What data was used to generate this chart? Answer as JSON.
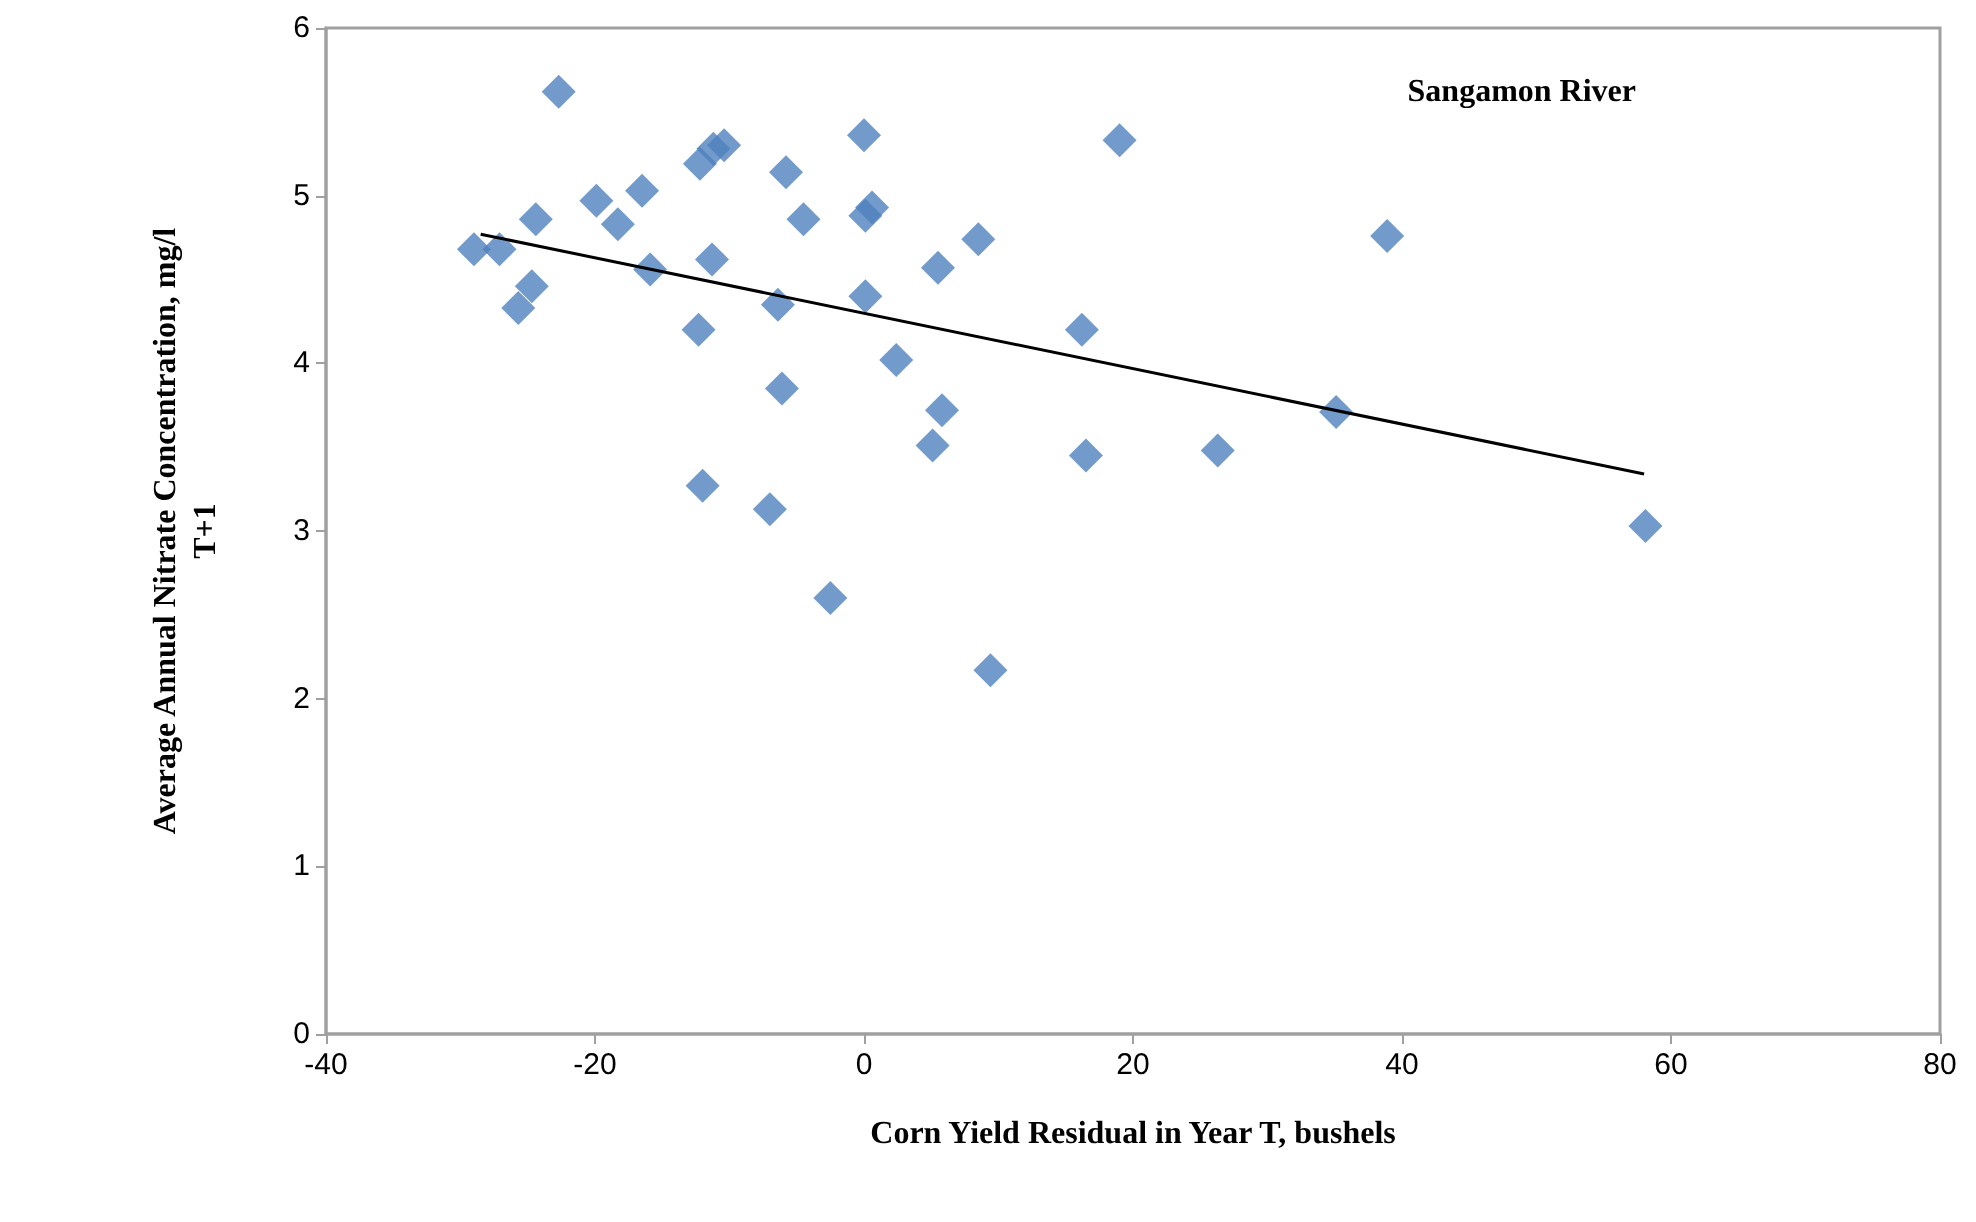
{
  "chart_data": {
    "type": "scatter",
    "xlabel": "Corn Yield Residual in Year T, bushels",
    "ylabel": "Average Annual Nitrate Concentration, mg/l\nT+1",
    "annotations": [
      "Sangamon River"
    ],
    "xlim": [
      -40,
      80
    ],
    "xticks": [
      -40,
      -20,
      0,
      20,
      40,
      60,
      80
    ],
    "ylim": [
      0,
      6
    ],
    "yticks": [
      0,
      1,
      2,
      3,
      4,
      5,
      6
    ],
    "grid": false,
    "marker": "diamond",
    "series": [
      {
        "color": "#4f81bd",
        "x": [
          -29.0,
          -27.1,
          -22.7,
          -24.4,
          -24.7,
          -25.7,
          -19.9,
          -18.3,
          -16.5,
          -15.9,
          -12.2,
          -11.2,
          -10.4,
          -11.3,
          -12.3,
          -12.0,
          -5.8,
          -4.5,
          -6.4,
          -6.1,
          -7.0,
          -2.5,
          0.0,
          0.6,
          0.1,
          0.1,
          2.4,
          5.5,
          8.5,
          5.8,
          5.1,
          9.4,
          16.2,
          16.5,
          19.0,
          26.3,
          35.1,
          38.9,
          58.1
        ],
        "values": [
          4.68,
          4.68,
          5.62,
          4.86,
          4.46,
          4.33,
          4.97,
          4.83,
          5.03,
          4.56,
          5.19,
          5.28,
          5.3,
          4.62,
          4.2,
          3.27,
          5.14,
          4.86,
          4.35,
          3.85,
          3.13,
          2.6,
          5.36,
          4.93,
          4.88,
          4.4,
          4.02,
          4.57,
          4.74,
          3.72,
          3.51,
          2.17,
          4.2,
          3.45,
          5.33,
          3.48,
          3.71,
          4.76,
          3.03
        ]
      },
      {
        "type": "line",
        "color": "#000000",
        "marker": "none",
        "x": [
          -28.5,
          58
        ],
        "values": [
          4.77,
          3.34
        ]
      }
    ]
  }
}
